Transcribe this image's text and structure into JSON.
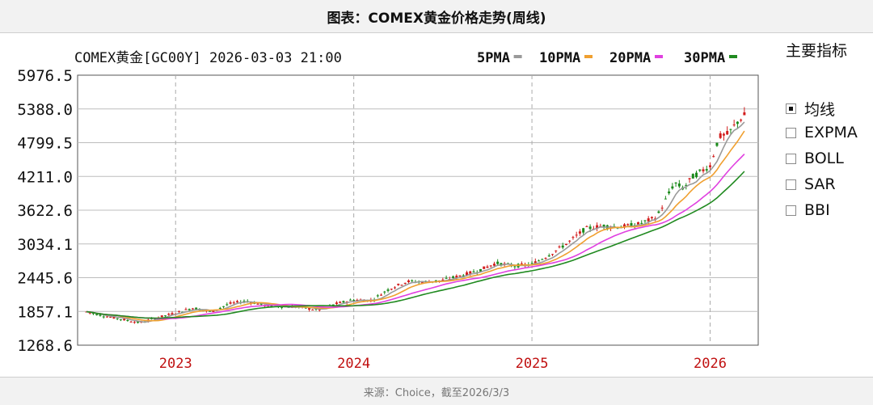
{
  "title": "图表：COMEX黄金价格走势(周线)",
  "footer": "来源：Choice，截至2026/3/3",
  "chart_header": "COMEX黄金[GC00Y] 2026-03-03 21:00",
  "legend": [
    {
      "label": "5PMA",
      "color": "#9a9a9a"
    },
    {
      "label": "10PMA",
      "color": "#f0a030"
    },
    {
      "label": "20PMA",
      "color": "#e040e0"
    },
    {
      "label": "30PMA",
      "color": "#208a20"
    }
  ],
  "indicator_panel": {
    "title": "主要指标",
    "items": [
      {
        "label": "均线",
        "checked": true
      },
      {
        "label": "EXPMA",
        "checked": false
      },
      {
        "label": "BOLL",
        "checked": false
      },
      {
        "label": "SAR",
        "checked": false
      },
      {
        "label": "BBI",
        "checked": false
      }
    ]
  },
  "chart_data": {
    "type": "line",
    "title": "COMEX黄金[GC00Y] 2026-03-03 21:00",
    "y_ticks": [
      "5976.5",
      "5388.0",
      "4799.5",
      "4211.0",
      "3622.6",
      "3034.1",
      "2445.6",
      "1857.1",
      "1268.6"
    ],
    "x_ticks": [
      {
        "label": "2023",
        "date": 2023.0
      },
      {
        "label": "2024",
        "date": 2024.0
      },
      {
        "label": "2025",
        "date": 2025.0
      },
      {
        "label": "2026",
        "date": 2026.0
      }
    ],
    "xlim": [
      2022.45,
      2026.27
    ],
    "ylim": [
      1268.6,
      5976.5
    ],
    "grid": true,
    "legend_position": "top-right",
    "series": [
      {
        "name": "5PMA",
        "color": "#9a9a9a"
      },
      {
        "name": "10PMA",
        "color": "#f0a030"
      },
      {
        "name": "20PMA",
        "color": "#e040e0"
      },
      {
        "name": "30PMA",
        "color": "#208a20"
      }
    ],
    "price": [
      [
        2022.5,
        1850
      ],
      [
        2022.6,
        1780
      ],
      [
        2022.7,
        1720
      ],
      [
        2022.8,
        1660
      ],
      [
        2022.9,
        1750
      ],
      [
        2023.0,
        1830
      ],
      [
        2023.1,
        1920
      ],
      [
        2023.2,
        1850
      ],
      [
        2023.3,
        1990
      ],
      [
        2023.4,
        2040
      ],
      [
        2023.5,
        1960
      ],
      [
        2023.6,
        1940
      ],
      [
        2023.7,
        1930
      ],
      [
        2023.8,
        1880
      ],
      [
        2023.9,
        1990
      ],
      [
        2024.0,
        2060
      ],
      [
        2024.1,
        2050
      ],
      [
        2024.15,
        2150
      ],
      [
        2024.2,
        2250
      ],
      [
        2024.3,
        2380
      ],
      [
        2024.4,
        2370
      ],
      [
        2024.5,
        2400
      ],
      [
        2024.6,
        2480
      ],
      [
        2024.7,
        2570
      ],
      [
        2024.8,
        2700
      ],
      [
        2024.9,
        2650
      ],
      [
        2025.0,
        2680
      ],
      [
        2025.1,
        2850
      ],
      [
        2025.2,
        3050
      ],
      [
        2025.3,
        3300
      ],
      [
        2025.4,
        3350
      ],
      [
        2025.5,
        3330
      ],
      [
        2025.6,
        3380
      ],
      [
        2025.7,
        3500
      ],
      [
        2025.75,
        3800
      ],
      [
        2025.8,
        4100
      ],
      [
        2025.85,
        4000
      ],
      [
        2025.9,
        4200
      ],
      [
        2026.0,
        4400
      ],
      [
        2026.05,
        4900
      ],
      [
        2026.1,
        4950
      ],
      [
        2026.15,
        5150
      ],
      [
        2026.2,
        5300
      ]
    ]
  }
}
